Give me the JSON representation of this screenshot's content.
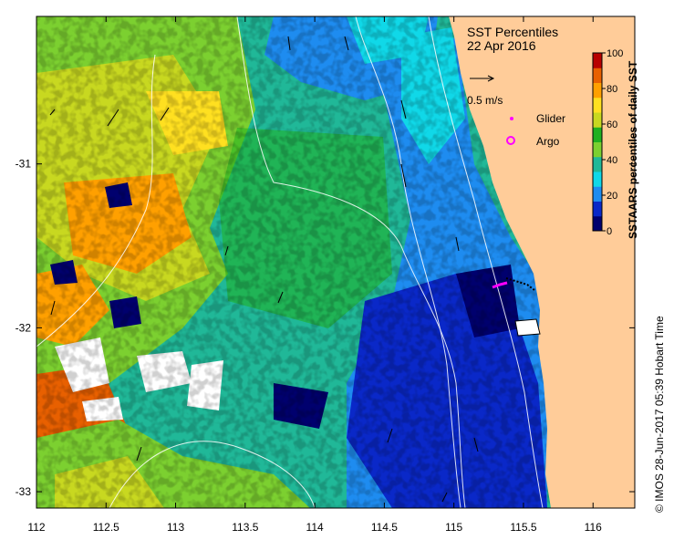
{
  "title": {
    "line1": "SST Percentiles",
    "line2": "22 Apr 2016"
  },
  "scale_arrow": {
    "label": "0.5 m/s"
  },
  "legend": {
    "glider": "Glider",
    "argo": "Argo"
  },
  "colorbar": {
    "label": "SSTAARS percentiles of daily SST",
    "ticks": [
      "0",
      "20",
      "40",
      "60",
      "80",
      "100"
    ],
    "colors": [
      "#00006e",
      "#0a28c8",
      "#1e8cf0",
      "#10d8e8",
      "#20b898",
      "#7cd030",
      "#20b020",
      "#c8d820",
      "#ffe020",
      "#ffa000",
      "#e86000",
      "#b80000"
    ]
  },
  "credit": "© IMOS 28-Jun-2017 05:39 Hobart Time",
  "chart_data": {
    "type": "heatmap",
    "x_ticks": [
      "112",
      "112.5",
      "113",
      "113.5",
      "114",
      "114.5",
      "115",
      "115.5",
      "116"
    ],
    "y_ticks": [
      "-31",
      "-32",
      "-33"
    ],
    "xlim": [
      112,
      116.3
    ],
    "ylim": [
      -33.1,
      -30.1
    ],
    "land_color": "#ffcc99",
    "cloud_color": "#ffffff"
  }
}
